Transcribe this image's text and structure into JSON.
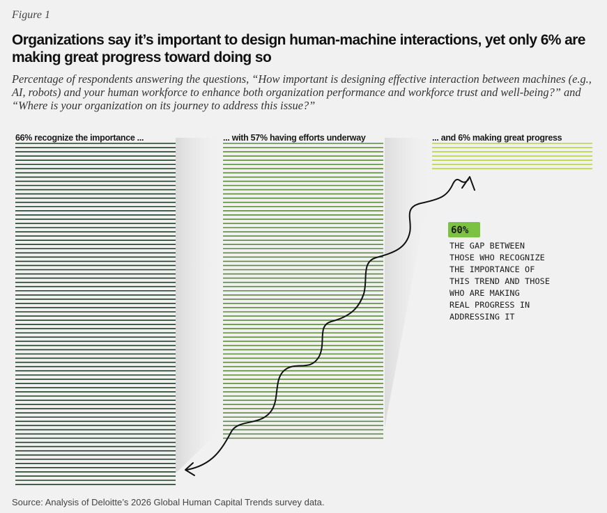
{
  "figure_label": "Figure 1",
  "title": "Organizations say it’s important to design human-machine interactions, yet only 6% are making great progress toward doing so",
  "subtitle": "Percentage of respondents answering the questions, “How important is designing effective interaction between machines (e.g., AI, robots) and your human workforce to enhance both organization performance and workforce trust and well-being?” and “Where is your organization on its journey to address this issue?”",
  "source": "Source: Analysis of Deloitte’s 2026 Global Human Capital Trends survey data.",
  "chart_data": {
    "type": "bar",
    "categories": [
      "Recognize the importance",
      "Efforts underway",
      "Making great progress"
    ],
    "values": [
      66,
      57,
      6
    ],
    "labels": [
      "66% recognize the importance ...",
      "... with 57% having efforts underway",
      "... and 6% making great progress"
    ],
    "colors": [
      "#1f3d26",
      "#5c8a3a",
      "#b7d24a"
    ],
    "annotation": {
      "badge": "60%",
      "badge_color": "#7cc242",
      "lines": [
        "THE GAP BETWEEN",
        "THOSE WHO RECOGNIZE",
        "THE IMPORTANCE OF",
        "THIS TREND AND THOSE",
        "WHO ARE MAKING",
        "REAL PROGRESS IN",
        "ADDRESSING IT"
      ]
    }
  }
}
